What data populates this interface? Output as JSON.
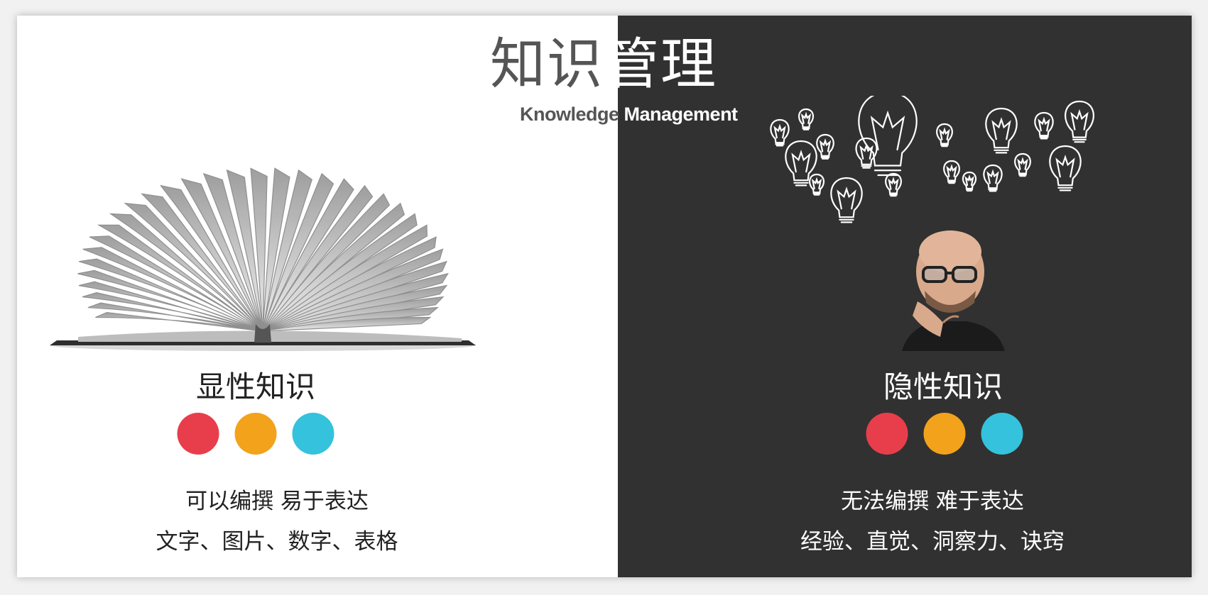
{
  "title": {
    "part_left": "知识",
    "part_right": "管理",
    "subtitle_left": "Knowledge",
    "subtitle_right": " Management"
  },
  "left": {
    "heading": "显性知识",
    "line1": "可以编撰 易于表达",
    "line2": "文字、图片、数字、表格",
    "image_icon": "open-book",
    "dots": [
      "#e83e4c",
      "#f3a21c",
      "#35c2dc"
    ]
  },
  "right": {
    "heading": "隐性知识",
    "line1": "无法编撰 难于表达",
    "line2": "经验、直觉、洞察力、诀窍",
    "image_icon": "thinking-man-with-light-bulbs",
    "dots": [
      "#e83e4c",
      "#f3a21c",
      "#35c2dc"
    ]
  },
  "colors": {
    "left_background": "#ffffff",
    "right_background": "#313131"
  }
}
